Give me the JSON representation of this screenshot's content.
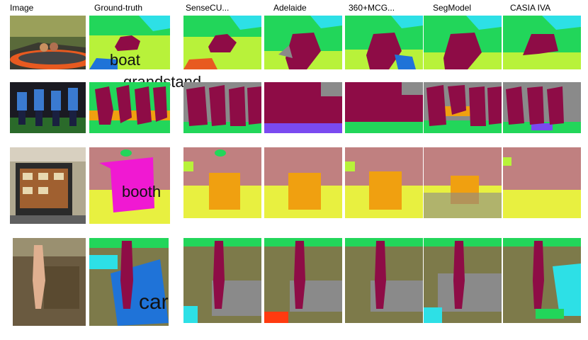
{
  "columns": {
    "image": "Image",
    "ground_truth": "Ground-truth",
    "m1": "SenseCU...",
    "m2": "Adelaide",
    "m3": "360+MCG...",
    "m4": "SegModel",
    "m5": "CASIA IVA"
  },
  "labels": {
    "boat": "boat",
    "grandstand": "grandstand",
    "booth": "booth",
    "car": "car"
  },
  "colors": {
    "sky": "#2de0e6",
    "tree": "#22d65a",
    "grass": "#b8f23a",
    "person": "#8e0c46",
    "road": "#8a8a8a",
    "water": "#1f73d8",
    "booth": "#f019d2",
    "wall": "#c08080",
    "floor": "#e8f040",
    "mud": "#7d7a4a",
    "orange": "#f0a010",
    "purple": "#7a4af0"
  }
}
